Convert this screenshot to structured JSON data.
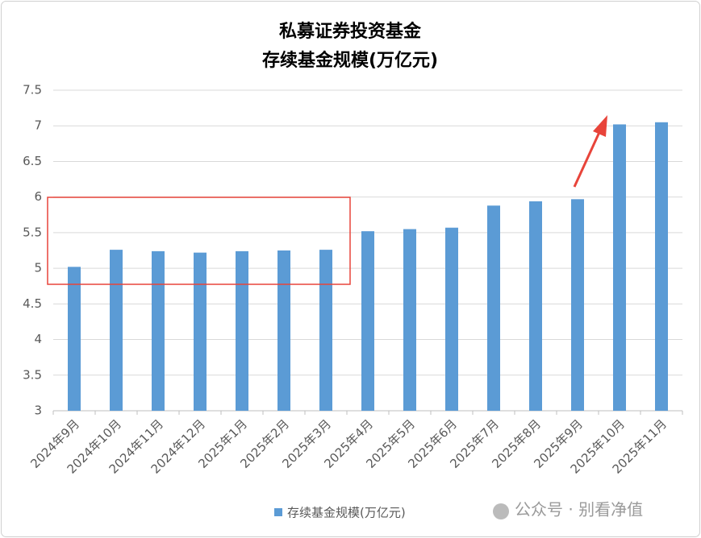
{
  "chart_data": {
    "type": "bar",
    "title": "私募证券投资基金",
    "subtitle": "存续基金规模(万亿元)",
    "categories": [
      "2024年9月",
      "2024年10月",
      "2024年11月",
      "2024年12月",
      "2025年1月",
      "2025年2月",
      "2025年3月",
      "2025年4月",
      "2025年5月",
      "2025年6月",
      "2025年7月",
      "2025年8月",
      "2025年9月",
      "2025年10月",
      "2025年11月"
    ],
    "series": [
      {
        "name": "存续基金规模(万亿元)",
        "color": "#5b9bd5",
        "values": [
          5.02,
          5.26,
          5.24,
          5.22,
          5.24,
          5.25,
          5.26,
          5.52,
          5.55,
          5.57,
          5.88,
          5.94,
          5.97,
          7.02,
          7.05
        ]
      }
    ],
    "ylim": [
      3,
      7.5
    ],
    "yticks": [
      3,
      3.5,
      4,
      4.5,
      5,
      5.5,
      6,
      6.5,
      7,
      7.5
    ],
    "grid": true,
    "legend": "bottom",
    "watermark": "公众号 · 别看净值"
  }
}
